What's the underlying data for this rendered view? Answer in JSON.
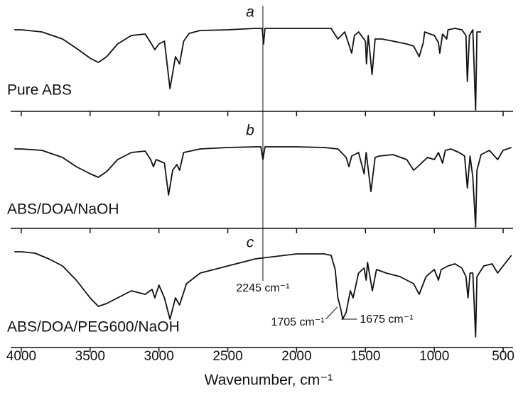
{
  "chart_data": [
    {
      "type": "line",
      "label": "a",
      "x": [
        4050,
        4000,
        3850,
        3700,
        3600,
        3500,
        3440,
        3380,
        3300,
        3200,
        3100,
        3060,
        3030,
        3000,
        2960,
        2920,
        2880,
        2850,
        2820,
        2780,
        2700,
        2500,
        2300,
        2250,
        2240,
        2230,
        2100,
        1900,
        1750,
        1700,
        1650,
        1600,
        1580,
        1550,
        1500,
        1493,
        1480,
        1452,
        1430,
        1380,
        1300,
        1200,
        1150,
        1110,
        1080,
        1070,
        1030,
        1000,
        970,
        960,
        940,
        910,
        900,
        850,
        800,
        770,
        760,
        745,
        720,
        700,
        690,
        660
      ],
      "series": [
        {
          "name": "Pure ABS",
          "color": "#111111",
          "values": [
            115,
            115,
            112,
            102,
            89,
            75,
            69,
            77,
            95,
            107,
            109,
            97,
            87,
            95,
            99,
            32,
            77,
            67,
            99,
            110,
            114,
            115,
            117,
            117,
            95,
            117,
            117,
            117,
            117,
            102,
            112,
            82,
            107,
            112,
            99,
            67,
            107,
            52,
            102,
            102,
            99,
            95,
            92,
            77,
            97,
            112,
            109,
            107,
            97,
            82,
            109,
            102,
            115,
            117,
            115,
            107,
            42,
            107,
            115,
            2,
            112,
            112
          ]
        }
      ],
      "xlim": [
        4077,
        428
      ],
      "ylim": [
        0,
        150
      ],
      "xticks": [
        4000,
        3500,
        3000,
        2500,
        2000,
        1500,
        1000,
        500
      ]
    },
    {
      "type": "line",
      "label": "b",
      "x": [
        4050,
        4000,
        3850,
        3700,
        3600,
        3500,
        3440,
        3380,
        3300,
        3200,
        3100,
        3060,
        3040,
        3020,
        2960,
        2930,
        2900,
        2870,
        2850,
        2820,
        2700,
        2500,
        2300,
        2260,
        2245,
        2230,
        2000,
        1800,
        1700,
        1640,
        1620,
        1600,
        1550,
        1510,
        1495,
        1460,
        1430,
        1400,
        1300,
        1200,
        1150,
        1120,
        1050,
        1000,
        970,
        940,
        920,
        880,
        820,
        780,
        760,
        740,
        720,
        700,
        690,
        660,
        600,
        540,
        500,
        440
      ],
      "series": [
        {
          "name": "ABS/DOA/NaOH",
          "color": "#111111",
          "values": [
            112,
            112,
            110,
            100,
            87,
            77,
            72,
            80,
            97,
            107,
            109,
            97,
            87,
            97,
            92,
            47,
            82,
            90,
            82,
            107,
            112,
            114,
            115,
            115,
            97,
            115,
            115,
            114,
            112,
            100,
            87,
            102,
            107,
            77,
            107,
            52,
            100,
            102,
            104,
            97,
            82,
            87,
            100,
            97,
            107,
            92,
            110,
            112,
            107,
            102,
            57,
            102,
            72,
            2,
            82,
            104,
            110,
            97,
            110,
            114
          ]
        }
      ],
      "xlim": [
        4077,
        428
      ],
      "ylim": [
        0,
        150
      ],
      "xticks": [
        4000,
        3500,
        3000,
        2500,
        2000,
        1500,
        1000,
        500
      ]
    },
    {
      "type": "line",
      "label": "c",
      "x": [
        4050,
        4000,
        3900,
        3800,
        3700,
        3600,
        3500,
        3440,
        3380,
        3300,
        3200,
        3100,
        3050,
        3030,
        3000,
        2960,
        2920,
        2880,
        2850,
        2800,
        2700,
        2500,
        2300,
        2000,
        1800,
        1750,
        1720,
        1700,
        1680,
        1665,
        1640,
        1610,
        1590,
        1550,
        1510,
        1495,
        1485,
        1450,
        1420,
        1350,
        1250,
        1150,
        1110,
        1060,
        1000,
        970,
        950,
        900,
        850,
        800,
        770,
        755,
        740,
        720,
        700,
        690,
        640,
        580,
        540,
        500,
        440
      ],
      "series": [
        {
          "name": "ABS/DOA/PEG600/NaOH",
          "color": "#111111",
          "values": [
            135,
            135,
            133,
            125,
            115,
            95,
            70,
            58,
            62,
            70,
            80,
            75,
            82,
            70,
            88,
            70,
            40,
            70,
            60,
            90,
            105,
            115,
            125,
            132,
            132,
            130,
            110,
            70,
            55,
            40,
            50,
            80,
            70,
            105,
            112,
            95,
            120,
            80,
            110,
            105,
            100,
            90,
            75,
            100,
            110,
            95,
            110,
            115,
            118,
            112,
            100,
            70,
            105,
            105,
            15,
            100,
            115,
            118,
            105,
            115,
            130
          ]
        }
      ],
      "xlim": [
        4077,
        428
      ],
      "ylim": [
        0,
        150
      ],
      "xticks": [
        4000,
        3500,
        3000,
        2500,
        2000,
        1500,
        1000,
        500
      ],
      "xlabel": "Wavenumber, cm⁻¹",
      "annotations": [
        {
          "text": "2245 cm⁻¹",
          "x": 2245
        },
        {
          "text": "1705 cm⁻¹",
          "x": 1705
        },
        {
          "text": "1675 cm⁻¹",
          "x": 1675
        }
      ]
    }
  ]
}
